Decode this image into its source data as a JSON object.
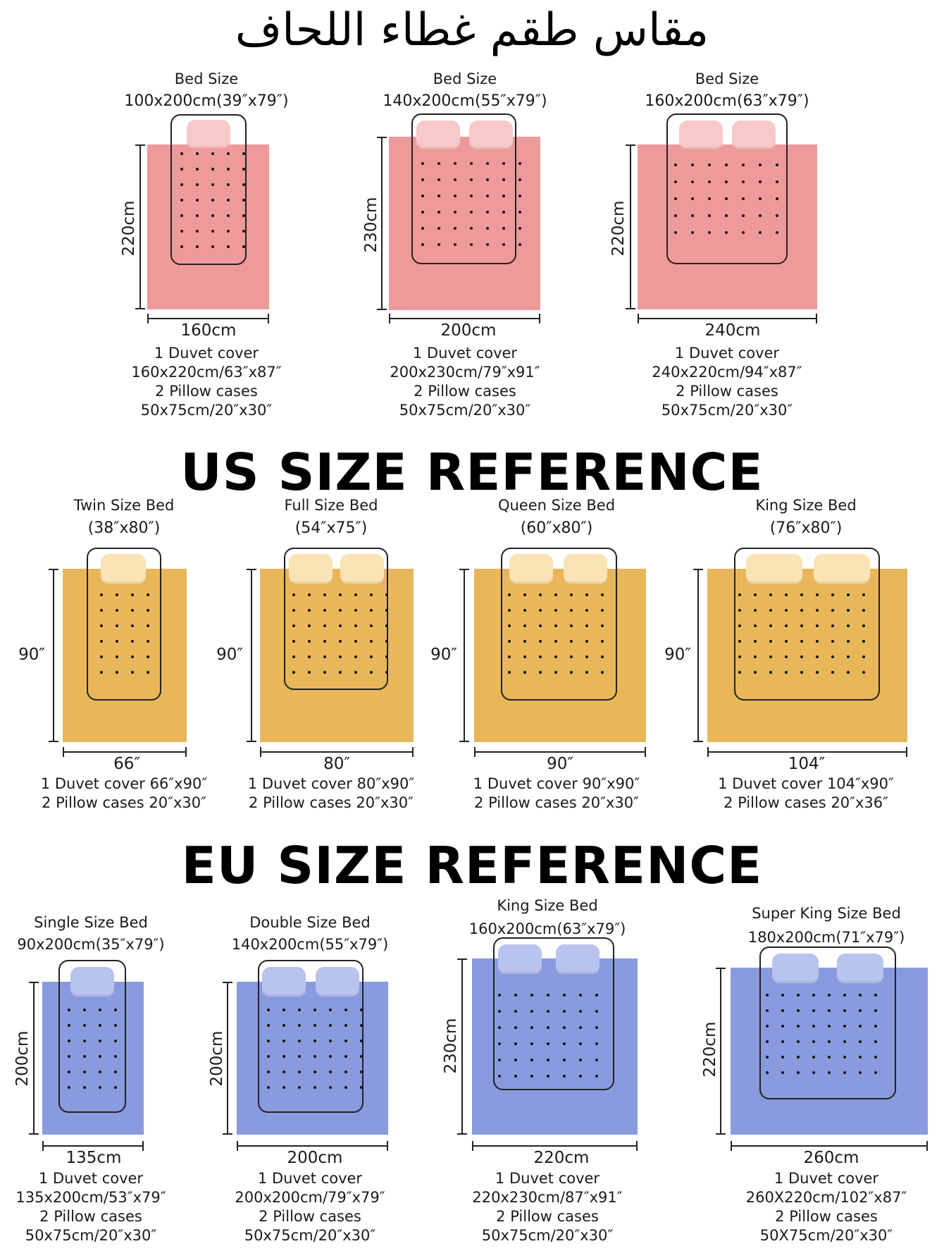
{
  "titles": {
    "arabic": "مقاس طقم غطاء اللحاف",
    "us": "US SIZE REFERENCE",
    "eu": "EU SIZE REFERENCE"
  },
  "colors": {
    "pink_sheet": "#ef9a9a",
    "pink_pillow": "#f8c9c9",
    "yellow_sheet": "#e8b75a",
    "yellow_pillow": "#fae3b4",
    "blue_sheet": "#8a9ade",
    "blue_pillow": "#b8c3ee"
  },
  "sections": {
    "top": [
      {
        "title": "Bed Size",
        "size": "100x200cm(39″x79″)",
        "height": "220cm",
        "width": "160cm",
        "lines": [
          "1 Duvet cover",
          "160x220cm/63″x87″",
          "2 Pillow cases",
          "50x75cm/20″x30″"
        ]
      },
      {
        "title": "Bed Size",
        "size": "140x200cm(55″x79″)",
        "height": "230cm",
        "width": "200cm",
        "lines": [
          "1 Duvet cover",
          "200x230cm/79″x91″",
          "2 Pillow cases",
          "50x75cm/20″x30″"
        ]
      },
      {
        "title": "Bed Size",
        "size": "160x200cm(63″x79″)",
        "height": "220cm",
        "width": "240cm",
        "lines": [
          "1 Duvet cover",
          "240x220cm/94″x87″",
          "2 Pillow cases",
          "50x75cm/20″x30″"
        ]
      }
    ],
    "us": [
      {
        "title": "Twin Size Bed",
        "size": "(38″x80″)",
        "height": "90″",
        "width": "66″",
        "lines": [
          "1 Duvet cover 66″x90″",
          "2 Pillow cases 20″x30″"
        ]
      },
      {
        "title": "Full Size Bed",
        "size": "(54″x75″)",
        "height": "90″",
        "width": "80″",
        "lines": [
          "1 Duvet cover 80″x90″",
          "2 Pillow cases 20″x30″"
        ]
      },
      {
        "title": "Queen Size Bed",
        "size": "(60″x80″)",
        "height": "90″",
        "width": "90″",
        "lines": [
          "1 Duvet cover 90″x90″",
          "2 Pillow cases 20″x30″"
        ]
      },
      {
        "title": "King Size Bed",
        "size": "(76″x80″)",
        "height": "90″",
        "width": "104″",
        "lines": [
          "1 Duvet cover 104″x90″",
          "2 Pillow cases 20″x36″"
        ]
      }
    ],
    "eu": [
      {
        "title": "Single Size Bed",
        "size": "90x200cm(35″x79″)",
        "height": "200cm",
        "width": "135cm",
        "lines": [
          "1 Duvet cover",
          "135x200cm/53″x79″",
          "2 Pillow cases",
          "50x75cm/20″x30″"
        ]
      },
      {
        "title": "Double Size Bed",
        "size": "140x200cm(55″x79″)",
        "height": "200cm",
        "width": "200cm",
        "lines": [
          "1 Duvet cover",
          "200x200cm/79″x79″",
          "2 Pillow cases",
          "50x75cm/20″x30″"
        ]
      },
      {
        "title": "King Size Bed",
        "size": "160x200cm(63″x79″)",
        "height": "230cm",
        "width": "220cm",
        "lines": [
          "1 Duvet cover",
          "220x230cm/87″x91″",
          "2 Pillow cases",
          "50x75cm/20″x30″"
        ]
      },
      {
        "title": "Super King Size Bed",
        "size": "180x200cm(71″x79″)",
        "height": "220cm",
        "width": "260cm",
        "lines": [
          "1 Duvet cover",
          "260X220cm/102″x87″",
          "2 Pillow cases",
          "50X75cm/20″x30″"
        ]
      }
    ]
  }
}
